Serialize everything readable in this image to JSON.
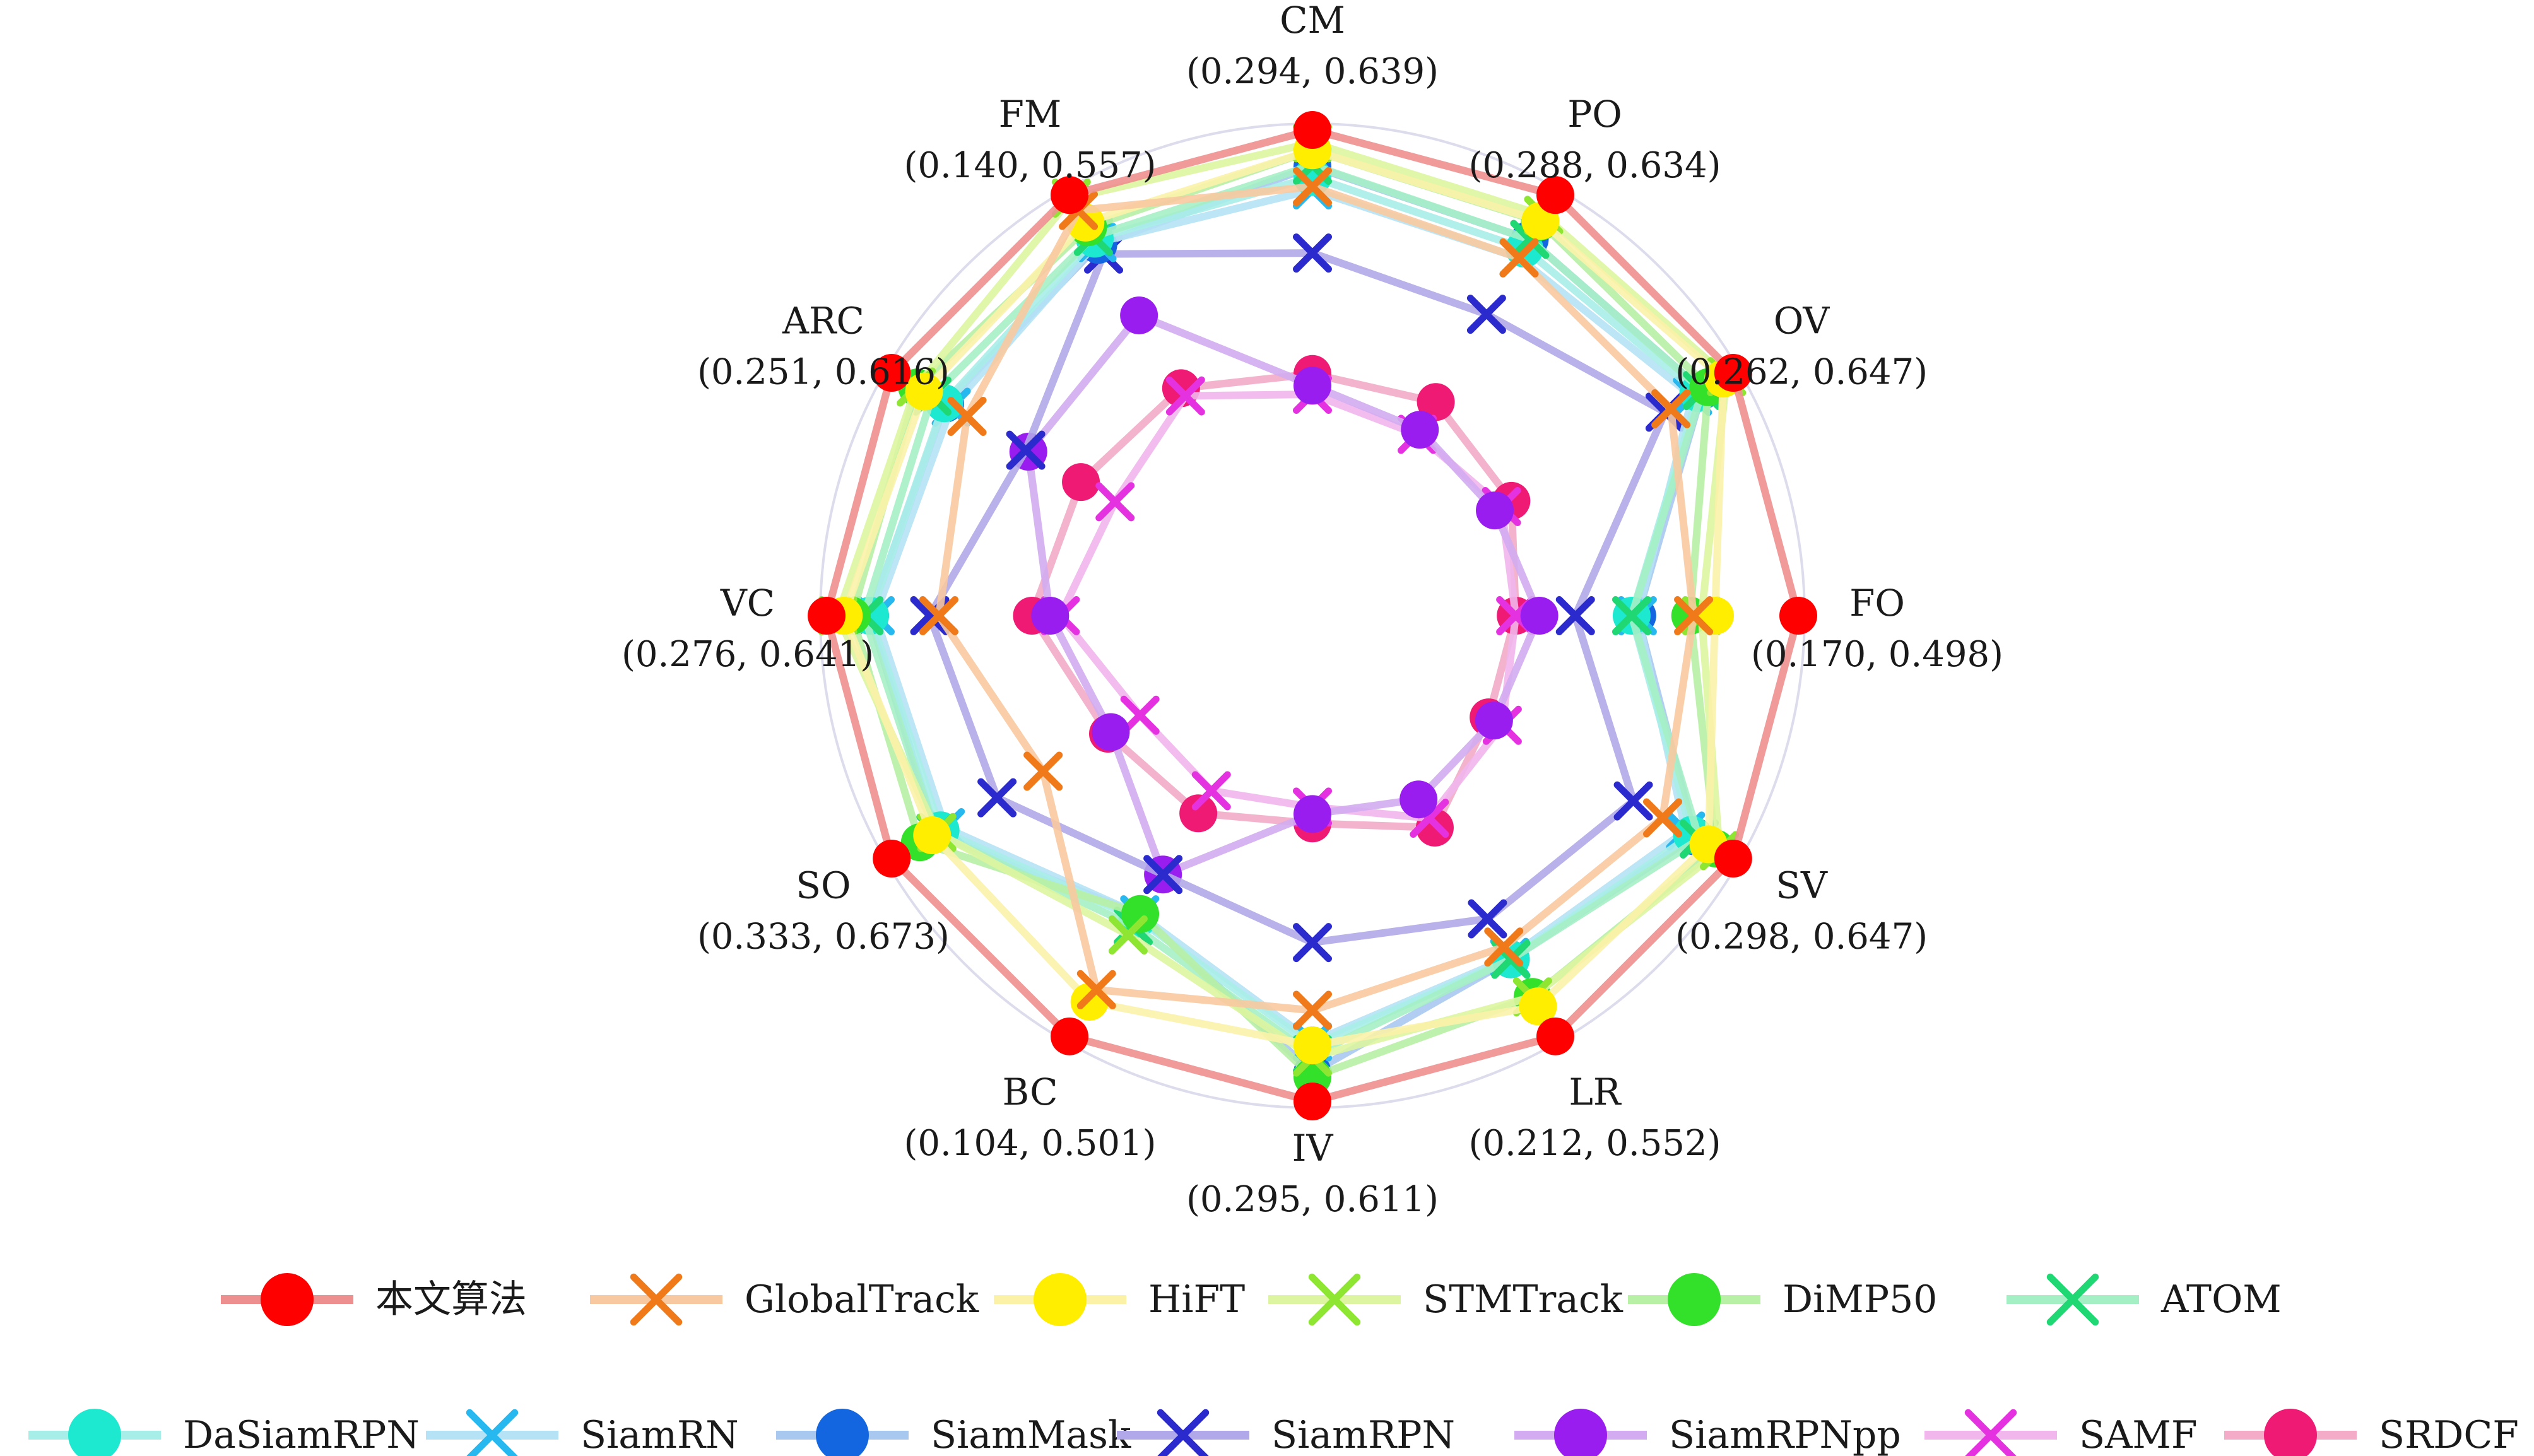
{
  "chart_data": {
    "type": "radar",
    "title": "",
    "axes": [
      {
        "name": "CM",
        "range": "(0.294, 0.639)"
      },
      {
        "name": "PO",
        "range": "(0.288, 0.634)"
      },
      {
        "name": "OV",
        "range": "(0.262, 0.647)"
      },
      {
        "name": "FO",
        "range": "(0.170, 0.498)"
      },
      {
        "name": "SV",
        "range": "(0.298, 0.647)"
      },
      {
        "name": "LR",
        "range": "(0.212, 0.552)"
      },
      {
        "name": "IV",
        "range": "(0.295, 0.611)"
      },
      {
        "name": "BC",
        "range": "(0.104, 0.501)"
      },
      {
        "name": "SO",
        "range": "(0.333, 0.673)"
      },
      {
        "name": "VC",
        "range": "(0.276, 0.641)"
      },
      {
        "name": "ARC",
        "range": "(0.251, 0.616)"
      },
      {
        "name": "FM",
        "range": "(0.140, 0.557)"
      }
    ],
    "series": [
      {
        "name": "本文算法",
        "line": "#ee8f8f",
        "marker": "dot",
        "mcolor": "#ff0000",
        "values": [
          0.639,
          0.634,
          0.647,
          0.498,
          0.647,
          0.552,
          0.611,
          0.501,
          0.673,
          0.641,
          0.616,
          0.557
        ]
      },
      {
        "name": "GlobalTrack",
        "line": "#f8c9a0",
        "marker": "x",
        "mcolor": "#f07a1a",
        "values": [
          0.586,
          0.566,
          0.572,
          0.405,
          0.57,
          0.457,
          0.533,
          0.443,
          0.512,
          0.53,
          0.53,
          0.537
        ]
      },
      {
        "name": "HiFT",
        "line": "#fbf2a8",
        "marker": "dot",
        "mcolor": "#ffee00",
        "values": [
          0.62,
          0.606,
          0.635,
          0.424,
          0.62,
          0.52,
          0.563,
          0.458,
          0.63,
          0.624,
          0.579,
          0.521
        ]
      },
      {
        "name": "STMTrack",
        "line": "#ddf5a0",
        "marker": "x",
        "mcolor": "#8ee632",
        "values": [
          0.627,
          0.612,
          0.639,
          0.412,
          0.632,
          0.51,
          0.573,
          0.375,
          0.625,
          0.63,
          0.588,
          0.553
        ]
      },
      {
        "name": "DiMP50",
        "line": "#b8f0a5",
        "marker": "dot",
        "mcolor": "#33e02a",
        "values": [
          0.62,
          0.605,
          0.617,
          0.402,
          0.628,
          0.51,
          0.59,
          0.349,
          0.643,
          0.616,
          0.587,
          0.515
        ]
      },
      {
        "name": "ATOM",
        "line": "#a5efc5",
        "marker": "x",
        "mcolor": "#1fd773",
        "values": [
          0.606,
          0.586,
          0.61,
          0.35,
          0.61,
          0.47,
          0.571,
          0.364,
          0.626,
          0.604,
          0.57,
          0.503
        ]
      },
      {
        "name": "DaSiamRPN",
        "line": "#a8eee8",
        "marker": "dot",
        "mcolor": "#1de8d0",
        "values": [
          0.595,
          0.576,
          0.605,
          0.35,
          0.602,
          0.47,
          0.563,
          0.355,
          0.621,
          0.598,
          0.556,
          0.5
        ]
      },
      {
        "name": "SiamRN",
        "line": "#b5e2f5",
        "marker": "x",
        "mcolor": "#27b8ef",
        "values": [
          0.583,
          0.566,
          0.598,
          0.355,
          0.595,
          0.468,
          0.56,
          0.35,
          0.616,
          0.593,
          0.548,
          0.495
        ]
      },
      {
        "name": "SiamMask",
        "line": "#a8c8ef",
        "marker": "dot",
        "mcolor": "#1366e0",
        "values": [
          0.605,
          0.586,
          0.61,
          0.355,
          0.605,
          0.47,
          0.586,
          0.35,
          0.626,
          0.598,
          0.555,
          0.492
        ]
      },
      {
        "name": "SiamRPN",
        "line": "#b0a8e8",
        "marker": "x",
        "mcolor": "#2a2acd",
        "values": [
          0.524,
          0.505,
          0.565,
          0.3,
          0.538,
          0.427,
          0.475,
          0.3,
          0.561,
          0.539,
          0.463,
          0.48
        ]
      },
      {
        "name": "SiamRPNpp",
        "line": "#d2abf0",
        "marker": "dot",
        "mcolor": "#9a1df0",
        "values": [
          0.4,
          0.38,
          0.36,
          0.268,
          0.386,
          0.3,
          0.365,
          0.3,
          0.44,
          0.42,
          0.46,
          0.4
        ]
      },
      {
        "name": "SAMF",
        "line": "#f1b6ec",
        "marker": "x",
        "mcolor": "#e532e0",
        "values": [
          0.392,
          0.375,
          0.368,
          0.247,
          0.395,
          0.32,
          0.359,
          0.196,
          0.409,
          0.41,
          0.361,
          0.295
        ]
      },
      {
        "name": "SRDCF",
        "line": "#f3abc8",
        "marker": "dot",
        "mcolor": "#ef1a74",
        "values": [
          0.411,
          0.41,
          0.38,
          0.247,
          0.38,
          0.33,
          0.373,
          0.224,
          0.443,
          0.438,
          0.4,
          0.305
        ]
      }
    ],
    "legend": {
      "placement": "bottom",
      "rows": 2
    },
    "grid": "outer-circle"
  }
}
